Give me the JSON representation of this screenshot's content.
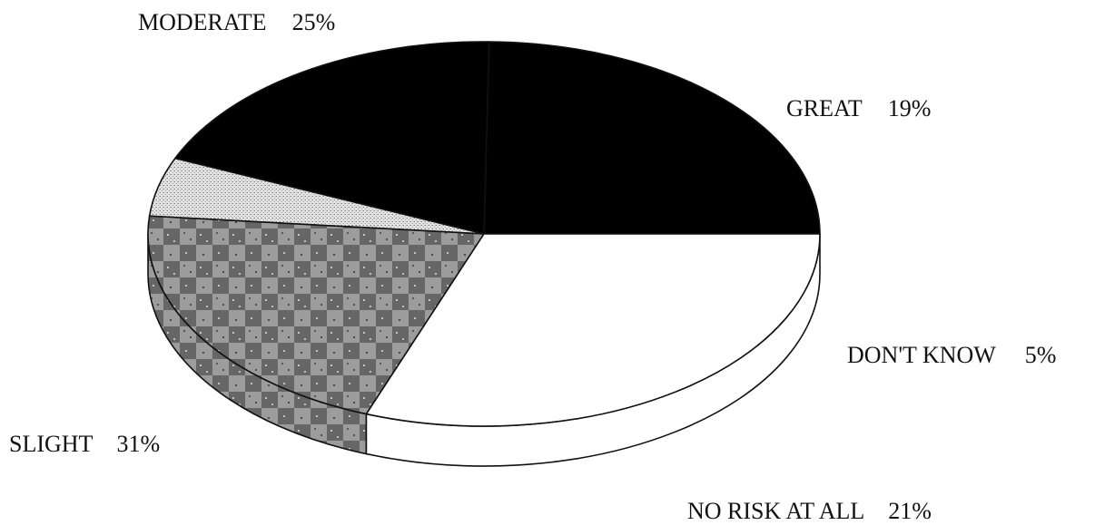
{
  "chart_data": {
    "type": "pie",
    "title": "",
    "style": "3d",
    "legend": "none",
    "slices": [
      {
        "label": "MODERATE",
        "pct_text": "25%",
        "value": 25,
        "fill": "solid",
        "color": "#000000"
      },
      {
        "label": "GREAT",
        "pct_text": "19%",
        "value": 19,
        "fill": "solid",
        "color": "#000000"
      },
      {
        "label": "DON'T KNOW",
        "pct_text": "5%",
        "value": 5,
        "fill": "light-stipple",
        "color": "#d0d0d0"
      },
      {
        "label": "NO RISK AT ALL",
        "pct_text": "21%",
        "value": 21,
        "fill": "checker",
        "color": "#8a8a8a"
      },
      {
        "label": "SLIGHT",
        "pct_text": "31%",
        "value": 31,
        "fill": "solid",
        "color": "#ffffff"
      }
    ]
  }
}
